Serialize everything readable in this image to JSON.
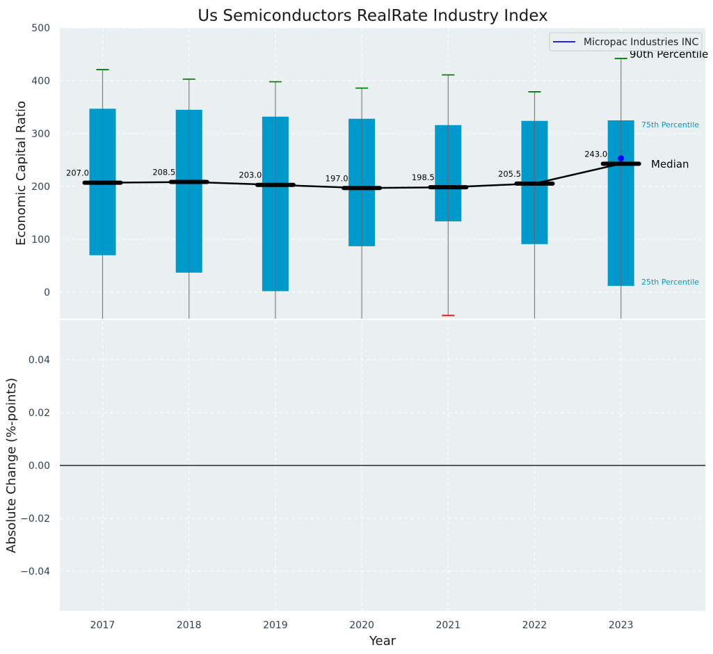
{
  "chart_data": [
    {
      "type": "box",
      "title": "Us Semiconductors RealRate Industry Index",
      "xlabel": "",
      "ylabel": "Economic Capital Ratio",
      "ylim": [
        -50,
        500
      ],
      "yticks": [
        0,
        100,
        200,
        300,
        400,
        500
      ],
      "grid": true,
      "legend_position": "top-right",
      "categories": [
        "2017",
        "2018",
        "2019",
        "2020",
        "2021",
        "2022",
        "2023"
      ],
      "boxes": [
        {
          "year": "2017",
          "p10": -50,
          "q1": 70,
          "median": 207.0,
          "q3": 347,
          "p90": 421,
          "median_label": "207.0"
        },
        {
          "year": "2018",
          "p10": -50,
          "q1": 37,
          "median": 208.5,
          "q3": 345,
          "p90": 403,
          "median_label": "208.5"
        },
        {
          "year": "2019",
          "p10": -50,
          "q1": 2,
          "median": 203.0,
          "q3": 332,
          "p90": 398,
          "median_label": "203.0"
        },
        {
          "year": "2020",
          "p10": -50,
          "q1": 87,
          "median": 197.0,
          "q3": 328,
          "p90": 386,
          "median_label": "197.0"
        },
        {
          "year": "2021",
          "p10": -44,
          "q1": 134,
          "median": 198.5,
          "q3": 316,
          "p90": 411,
          "median_label": "198.5"
        },
        {
          "year": "2022",
          "p10": -50,
          "q1": 91,
          "median": 205.5,
          "q3": 324,
          "p90": 379,
          "median_label": "205.5"
        },
        {
          "year": "2023",
          "p10": -50,
          "q1": 12,
          "median": 243.0,
          "q3": 325,
          "p90": 442,
          "median_label": "243.0"
        }
      ],
      "series": [
        {
          "name": "Micropac Industries INC",
          "type": "point",
          "color": "#0000ff",
          "values": [
            {
              "x": "2023",
              "y": 253
            }
          ]
        }
      ],
      "annotations": {
        "p90": "90th Percentile",
        "p75": "75th Percentile",
        "median": "Median",
        "p25": "25th Percentile"
      }
    },
    {
      "type": "line",
      "title": "",
      "xlabel": "Year",
      "ylabel": "Absolute Change (%-points)",
      "ylim": [
        -0.055,
        0.055
      ],
      "yticks": [
        -0.04,
        -0.02,
        0.0,
        0.02,
        0.04
      ],
      "ytick_labels": [
        "−0.04",
        "−0.02",
        "0.00",
        "0.02",
        "0.04"
      ],
      "xticks": [
        "2017",
        "2018",
        "2019",
        "2020",
        "2021",
        "2022",
        "2023"
      ],
      "grid": true,
      "reference_line": 0
    }
  ],
  "colors": {
    "box_fill": "#0099cc",
    "median": "#000000",
    "whisker_top_cap": "#008000",
    "whisker_bottom_cap": "#ff0000",
    "whisker_line": "#808080",
    "plot_background": "#eaeff1",
    "label_75": "#0099cc",
    "label_25": "#0099cc",
    "text": "#2e3f55"
  }
}
